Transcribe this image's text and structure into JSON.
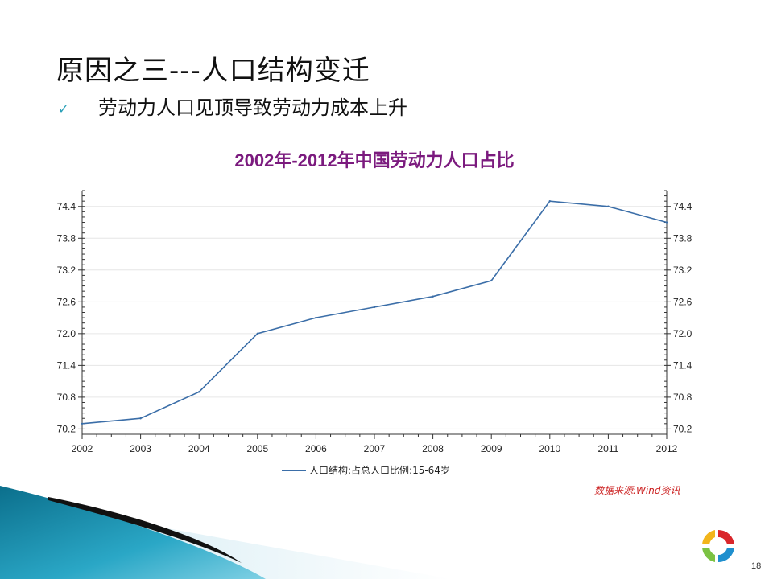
{
  "slide": {
    "title": "原因之三---人口结构变迁",
    "bullet_icon": "check-icon",
    "bullet_text": "劳动力人口见顶导致劳动力成本上升",
    "source_note": "数据来源:Wind资讯",
    "page_number": "18"
  },
  "colors": {
    "title_purple": "#7b1a7e",
    "series_line": "#3b6ea8",
    "source_red": "#cc2222",
    "check_teal": "#2aa0b8"
  },
  "chart_data": {
    "type": "line",
    "title": "2002年-2012年中国劳动力人口占比",
    "x": [
      2002,
      2003,
      2004,
      2005,
      2006,
      2007,
      2008,
      2009,
      2010,
      2011,
      2012
    ],
    "series": [
      {
        "name": "人口结构:占总人口比例:15-64岁",
        "values": [
          70.3,
          70.4,
          70.9,
          72.0,
          72.3,
          72.5,
          72.7,
          73.0,
          74.5,
          74.4,
          74.1
        ]
      }
    ],
    "y_ticks": [
      70.2,
      70.8,
      71.4,
      72.0,
      72.6,
      73.2,
      73.8,
      74.4
    ],
    "y_tick_labels": [
      "70.2",
      "70.8",
      "71.4",
      "72.0",
      "72.6",
      "73.2",
      "73.8",
      "74.4"
    ],
    "x_tick_labels": [
      "2002",
      "2003",
      "2004",
      "2005",
      "2006",
      "2007",
      "2008",
      "2009",
      "2010",
      "2011",
      "2012"
    ],
    "xlim": [
      2002,
      2012
    ],
    "ylim": [
      70.1,
      74.7
    ],
    "grid": true,
    "legend_position": "bottom",
    "right_axis_mirrors_left": true
  }
}
